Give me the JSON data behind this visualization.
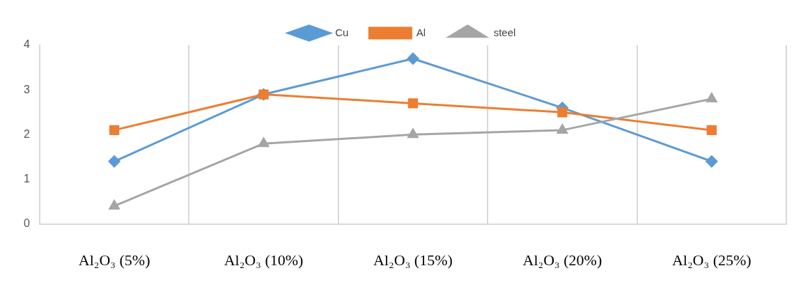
{
  "chart_data": {
    "type": "line",
    "categories": [
      "Al₂O₃ (5%)",
      "Al₂O₃ (10%)",
      "Al₂O₃ (15%)",
      "Al₂O₃ (20%)",
      "Al₂O₃ (25%)"
    ],
    "series": [
      {
        "name": "Cu",
        "color": "#5b9bd5",
        "marker": "diamond",
        "values": [
          1.4,
          2.9,
          3.7,
          2.6,
          1.4
        ]
      },
      {
        "name": "Al",
        "color": "#ed7d31",
        "marker": "square",
        "values": [
          2.1,
          2.9,
          2.7,
          2.5,
          2.1
        ]
      },
      {
        "name": "steel",
        "color": "#a5a5a5",
        "marker": "triangle",
        "values": [
          0.4,
          1.8,
          2.0,
          2.1,
          2.8
        ]
      }
    ],
    "ylim": [
      0,
      4
    ],
    "yticks": [
      0,
      1,
      2,
      3,
      4
    ],
    "grid": "x",
    "legend": "top",
    "line_style": "solid"
  }
}
